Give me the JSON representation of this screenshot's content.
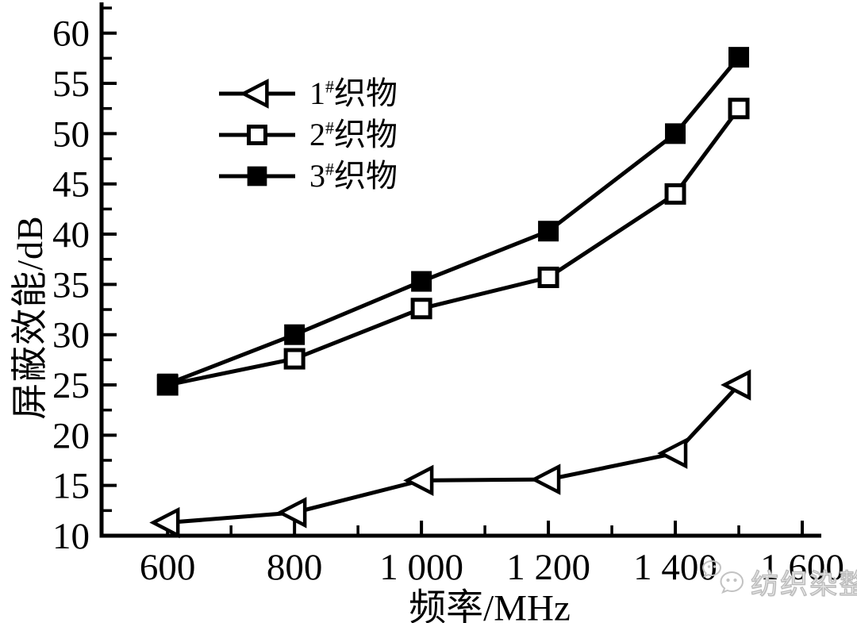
{
  "figure": {
    "background": "#ffffff",
    "line_color": "#000000",
    "watermark": {
      "text": "纺织染整",
      "icon": "wechat-bubbles",
      "color": "#bcbcbc"
    }
  },
  "chart_data": {
    "type": "line",
    "title": "",
    "xlabel": "频率/MHz",
    "ylabel": "屏蔽效能/dB",
    "xlim": [
      496,
      1630
    ],
    "ylim": [
      10,
      62.9
    ],
    "grid": false,
    "legend_position": "inside-upper-left",
    "x_ticks": [
      600,
      800,
      1000,
      1200,
      1400,
      1600
    ],
    "x_tick_labels": [
      "600",
      "800",
      "1 000",
      "1 200",
      "1 400",
      "1 600"
    ],
    "x_minor_ticks": [
      700,
      900,
      1100,
      1300,
      1500
    ],
    "y_ticks": [
      10,
      15,
      20,
      25,
      30,
      35,
      40,
      45,
      50,
      55,
      60
    ],
    "y_tick_labels": [
      "10",
      "15",
      "20",
      "25",
      "30",
      "35",
      "40",
      "45",
      "50",
      "55",
      "60"
    ],
    "y_minor_ticks": [
      12.5,
      17.5,
      22.5,
      27.5,
      32.5,
      37.5,
      42.5,
      47.5,
      52.5,
      57.5,
      62.5
    ],
    "series": [
      {
        "name": "1#织物",
        "legend": {
          "num": "1",
          "sup": "#",
          "text": "织物"
        },
        "marker": "open-triangle-left",
        "x": [
          600,
          800,
          1000,
          1200,
          1400,
          1500
        ],
        "y": [
          11.3,
          12.3,
          15.5,
          15.6,
          18.2,
          25.0
        ]
      },
      {
        "name": "2#织物",
        "legend": {
          "num": "2",
          "sup": "#",
          "text": "织物"
        },
        "marker": "open-square",
        "x": [
          600,
          800,
          1000,
          1200,
          1400,
          1500
        ],
        "y": [
          25.0,
          27.6,
          32.6,
          35.7,
          44.0,
          52.5
        ]
      },
      {
        "name": "3#织物",
        "legend": {
          "num": "3",
          "sup": "#",
          "text": "织物"
        },
        "marker": "filled-square",
        "x": [
          600,
          800,
          1000,
          1200,
          1400,
          1500
        ],
        "y": [
          25.1,
          30.0,
          35.3,
          40.3,
          50.0,
          57.6
        ]
      }
    ]
  }
}
